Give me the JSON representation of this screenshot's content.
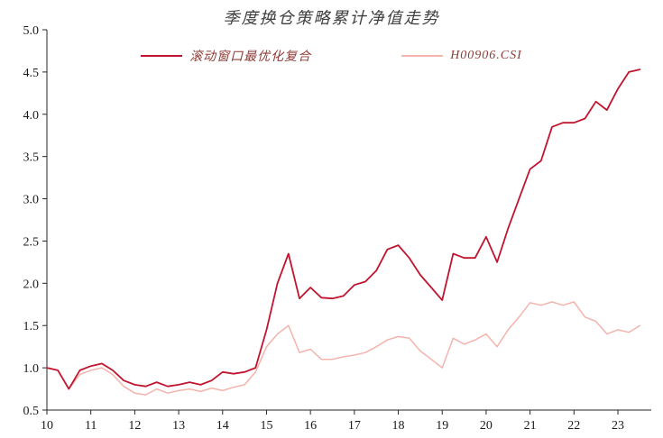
{
  "chart_data": {
    "type": "line",
    "title": "季度换仓策略累计净值走势",
    "xlabel": "",
    "ylabel": "",
    "xlim": [
      10,
      23.76
    ],
    "ylim": [
      0.5,
      5.0
    ],
    "xticks": [
      10,
      11,
      12,
      13,
      14,
      15,
      16,
      17,
      18,
      19,
      20,
      21,
      22,
      23
    ],
    "yticks": [
      0.5,
      1.0,
      1.5,
      2.0,
      2.5,
      3.0,
      3.5,
      4.0,
      4.5,
      5.0
    ],
    "grid": false,
    "legend_position": "top-inside",
    "axis_color": "#262626",
    "tick_label_color": "#1a1a1a",
    "x": [
      10,
      10.25,
      10.5,
      10.75,
      11,
      11.25,
      11.5,
      11.75,
      12,
      12.25,
      12.5,
      12.75,
      13,
      13.25,
      13.5,
      13.75,
      14,
      14.25,
      14.5,
      14.75,
      15,
      15.25,
      15.5,
      15.75,
      16,
      16.25,
      16.5,
      16.75,
      17,
      17.25,
      17.5,
      17.75,
      18,
      18.25,
      18.5,
      18.75,
      19,
      19.25,
      19.5,
      19.75,
      20,
      20.25,
      20.5,
      20.75,
      21,
      21.25,
      21.5,
      21.75,
      22,
      22.25,
      22.5,
      22.75,
      23,
      23.25,
      23.5
    ],
    "series": [
      {
        "name": "滚动窗口最优化复合",
        "color": "#c0152f",
        "width": 1.8,
        "values": [
          1.0,
          0.97,
          0.75,
          0.97,
          1.02,
          1.05,
          0.97,
          0.85,
          0.8,
          0.78,
          0.83,
          0.78,
          0.8,
          0.83,
          0.8,
          0.85,
          0.95,
          0.93,
          0.95,
          1.0,
          1.45,
          2.0,
          2.35,
          1.82,
          1.95,
          1.83,
          1.82,
          1.85,
          1.98,
          2.02,
          2.15,
          2.4,
          2.45,
          2.3,
          2.1,
          1.95,
          1.8,
          2.35,
          2.3,
          2.3,
          2.55,
          2.25,
          2.65,
          3.0,
          3.35,
          3.45,
          3.85,
          3.9,
          3.9,
          3.95,
          4.15,
          4.05,
          4.3,
          4.5,
          4.53
        ]
      },
      {
        "name": "H00906.CSI",
        "color": "#f2b4ac",
        "width": 1.5,
        "values": [
          1.0,
          0.97,
          0.75,
          0.92,
          0.97,
          1.0,
          0.92,
          0.78,
          0.7,
          0.68,
          0.75,
          0.7,
          0.73,
          0.75,
          0.72,
          0.76,
          0.73,
          0.77,
          0.8,
          0.95,
          1.25,
          1.4,
          1.5,
          1.18,
          1.22,
          1.1,
          1.1,
          1.13,
          1.15,
          1.18,
          1.25,
          1.33,
          1.37,
          1.35,
          1.2,
          1.1,
          1.0,
          1.35,
          1.28,
          1.33,
          1.4,
          1.25,
          1.45,
          1.6,
          1.77,
          1.74,
          1.78,
          1.74,
          1.78,
          1.6,
          1.55,
          1.4,
          1.45,
          1.42,
          1.5
        ]
      }
    ]
  }
}
